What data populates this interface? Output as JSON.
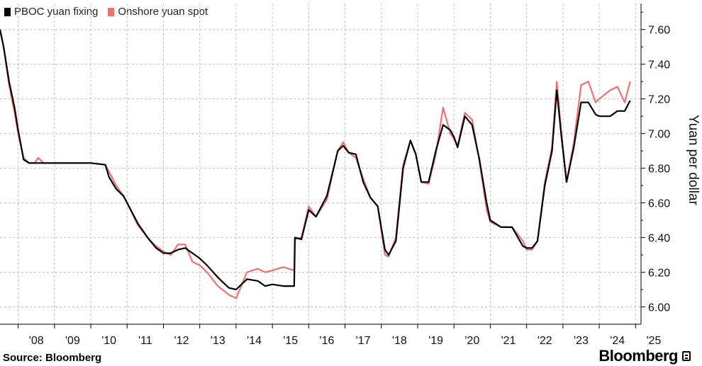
{
  "legend": {
    "fixing_label": "PBOC yuan fixing",
    "spot_label": "Onshore yuan spot"
  },
  "footer": {
    "source": "Source: Bloomberg",
    "brand": "Bloomberg"
  },
  "chart_data": {
    "type": "line",
    "ylabel": "Yuan per dollar",
    "ylim": [
      5.9,
      7.75
    ],
    "xlim": [
      2007.5,
      2025.15
    ],
    "yticks": [
      "6.00",
      "6.20",
      "6.40",
      "6.60",
      "6.80",
      "7.00",
      "7.20",
      "7.40",
      "7.60"
    ],
    "ytick_values": [
      6.0,
      6.2,
      6.4,
      6.6,
      6.8,
      7.0,
      7.2,
      7.4,
      7.6
    ],
    "xticks": [
      "'08",
      "'09",
      "'10",
      "'11",
      "'12",
      "'13",
      "'14",
      "'15",
      "'16",
      "'17",
      "'18",
      "'19",
      "'20",
      "'21",
      "'22",
      "'23",
      "'24",
      "'25"
    ],
    "xtick_values": [
      2008,
      2009,
      2010,
      2011,
      2012,
      2013,
      2014,
      2015,
      2016,
      2017,
      2018,
      2019,
      2020,
      2021,
      2022,
      2023,
      2024,
      2025
    ],
    "grid": true,
    "legend_position": "top-left",
    "colors": {
      "fixing": "#000000",
      "spot": "#f07070",
      "grid": "#bdbdbd"
    },
    "series": [
      {
        "name": "PBOC yuan fixing",
        "x": [
          2007.5,
          2007.6,
          2007.75,
          2007.9,
          2008.0,
          2008.15,
          2008.3,
          2008.45,
          2008.55,
          2008.7,
          2009.0,
          2009.5,
          2010.0,
          2010.4,
          2010.5,
          2010.7,
          2010.9,
          2011.0,
          2011.3,
          2011.6,
          2011.8,
          2012.0,
          2012.2,
          2012.4,
          2012.6,
          2012.8,
          2013.0,
          2013.2,
          2013.5,
          2013.8,
          2014.0,
          2014.3,
          2014.6,
          2014.8,
          2015.0,
          2015.3,
          2015.6,
          2015.62,
          2015.8,
          2016.0,
          2016.2,
          2016.5,
          2016.8,
          2016.95,
          2017.1,
          2017.3,
          2017.5,
          2017.7,
          2017.9,
          2018.1,
          2018.2,
          2018.4,
          2018.6,
          2018.8,
          2018.95,
          2019.1,
          2019.3,
          2019.5,
          2019.7,
          2019.9,
          2020.0,
          2020.1,
          2020.3,
          2020.5,
          2020.7,
          2020.9,
          2021.0,
          2021.3,
          2021.6,
          2021.9,
          2022.0,
          2022.15,
          2022.3,
          2022.5,
          2022.7,
          2022.83,
          2022.95,
          2023.1,
          2023.3,
          2023.5,
          2023.7,
          2023.9,
          2024.0,
          2024.3,
          2024.5,
          2024.7,
          2024.85
        ],
        "y": [
          7.6,
          7.5,
          7.3,
          7.15,
          7.02,
          6.85,
          6.83,
          6.83,
          6.83,
          6.83,
          6.83,
          6.83,
          6.83,
          6.82,
          6.75,
          6.68,
          6.64,
          6.6,
          6.48,
          6.39,
          6.34,
          6.31,
          6.31,
          6.33,
          6.34,
          6.31,
          6.28,
          6.24,
          6.17,
          6.11,
          6.1,
          6.16,
          6.15,
          6.12,
          6.13,
          6.12,
          6.12,
          6.4,
          6.39,
          6.56,
          6.52,
          6.64,
          6.9,
          6.93,
          6.89,
          6.88,
          6.72,
          6.63,
          6.58,
          6.33,
          6.3,
          6.38,
          6.8,
          6.96,
          6.88,
          6.72,
          6.72,
          6.9,
          7.05,
          7.02,
          6.98,
          6.92,
          7.1,
          7.05,
          6.85,
          6.6,
          6.5,
          6.46,
          6.46,
          6.35,
          6.34,
          6.34,
          6.38,
          6.7,
          6.9,
          7.25,
          7.0,
          6.72,
          6.92,
          7.18,
          7.18,
          7.11,
          7.1,
          7.1,
          7.13,
          7.13,
          7.19
        ]
      },
      {
        "name": "Onshore yuan spot",
        "x": [
          2007.5,
          2007.6,
          2007.75,
          2007.9,
          2008.0,
          2008.15,
          2008.3,
          2008.45,
          2008.55,
          2008.7,
          2009.0,
          2009.5,
          2010.0,
          2010.4,
          2010.5,
          2010.7,
          2010.9,
          2011.0,
          2011.3,
          2011.6,
          2011.8,
          2012.0,
          2012.2,
          2012.4,
          2012.6,
          2012.8,
          2013.0,
          2013.2,
          2013.5,
          2013.8,
          2014.0,
          2014.3,
          2014.6,
          2014.8,
          2015.0,
          2015.3,
          2015.6,
          2015.62,
          2015.8,
          2016.0,
          2016.2,
          2016.5,
          2016.8,
          2016.95,
          2017.1,
          2017.3,
          2017.5,
          2017.7,
          2017.9,
          2018.1,
          2018.2,
          2018.4,
          2018.6,
          2018.8,
          2018.95,
          2019.1,
          2019.3,
          2019.5,
          2019.7,
          2019.9,
          2020.0,
          2020.1,
          2020.3,
          2020.5,
          2020.7,
          2020.9,
          2021.0,
          2021.3,
          2021.6,
          2021.9,
          2022.0,
          2022.15,
          2022.3,
          2022.5,
          2022.7,
          2022.83,
          2022.95,
          2023.1,
          2023.3,
          2023.5,
          2023.7,
          2023.9,
          2024.0,
          2024.3,
          2024.5,
          2024.7,
          2024.85
        ],
        "y": [
          7.6,
          7.5,
          7.28,
          7.12,
          7.0,
          6.86,
          6.83,
          6.83,
          6.86,
          6.83,
          6.83,
          6.83,
          6.83,
          6.82,
          6.78,
          6.7,
          6.64,
          6.6,
          6.47,
          6.39,
          6.35,
          6.32,
          6.3,
          6.36,
          6.36,
          6.26,
          6.24,
          6.2,
          6.12,
          6.07,
          6.05,
          6.2,
          6.22,
          6.2,
          6.21,
          6.23,
          6.21,
          6.39,
          6.4,
          6.58,
          6.52,
          6.62,
          6.9,
          6.95,
          6.89,
          6.86,
          6.74,
          6.63,
          6.58,
          6.3,
          6.29,
          6.4,
          6.82,
          6.96,
          6.88,
          6.72,
          6.71,
          6.88,
          7.15,
          7.0,
          6.97,
          6.93,
          7.12,
          7.08,
          6.84,
          6.56,
          6.49,
          6.46,
          6.46,
          6.38,
          6.33,
          6.33,
          6.38,
          6.72,
          6.92,
          7.3,
          7.02,
          6.72,
          6.95,
          7.28,
          7.3,
          7.18,
          7.2,
          7.25,
          7.27,
          7.18,
          7.3
        ]
      }
    ]
  }
}
